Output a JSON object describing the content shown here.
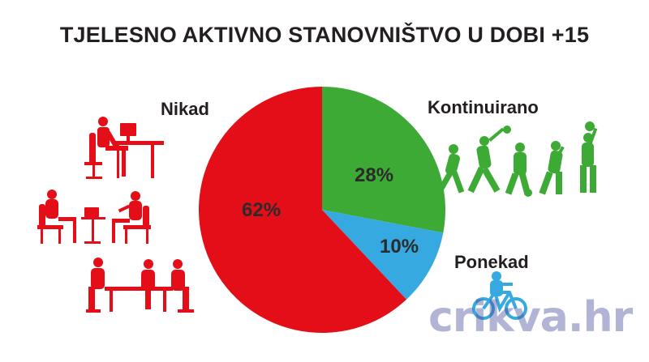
{
  "chart_data": {
    "type": "pie",
    "title": "TJELESNO AKTIVNO STANOVNIŠTVO U DOBI +15",
    "categories": [
      "Nikad",
      "Kontinuirano",
      "Ponekad"
    ],
    "values": [
      62,
      28,
      10
    ],
    "labels": [
      "62%",
      "28%",
      "10%"
    ],
    "colors": [
      "#e30e17",
      "#3caa35",
      "#36a9e1"
    ]
  },
  "icons": {
    "nikad": [
      "office-desk-worker-icon",
      "meeting-chairs-icon",
      "conference-table-icon"
    ],
    "kontinuirano": "sports-silhouettes-icon",
    "ponekad": "cyclist-icon",
    "colors": {
      "nikad": "#e30e17",
      "kontinuirano": "#3caa35",
      "ponekad": "#36a9e1"
    }
  },
  "watermark": "crikva.hr"
}
